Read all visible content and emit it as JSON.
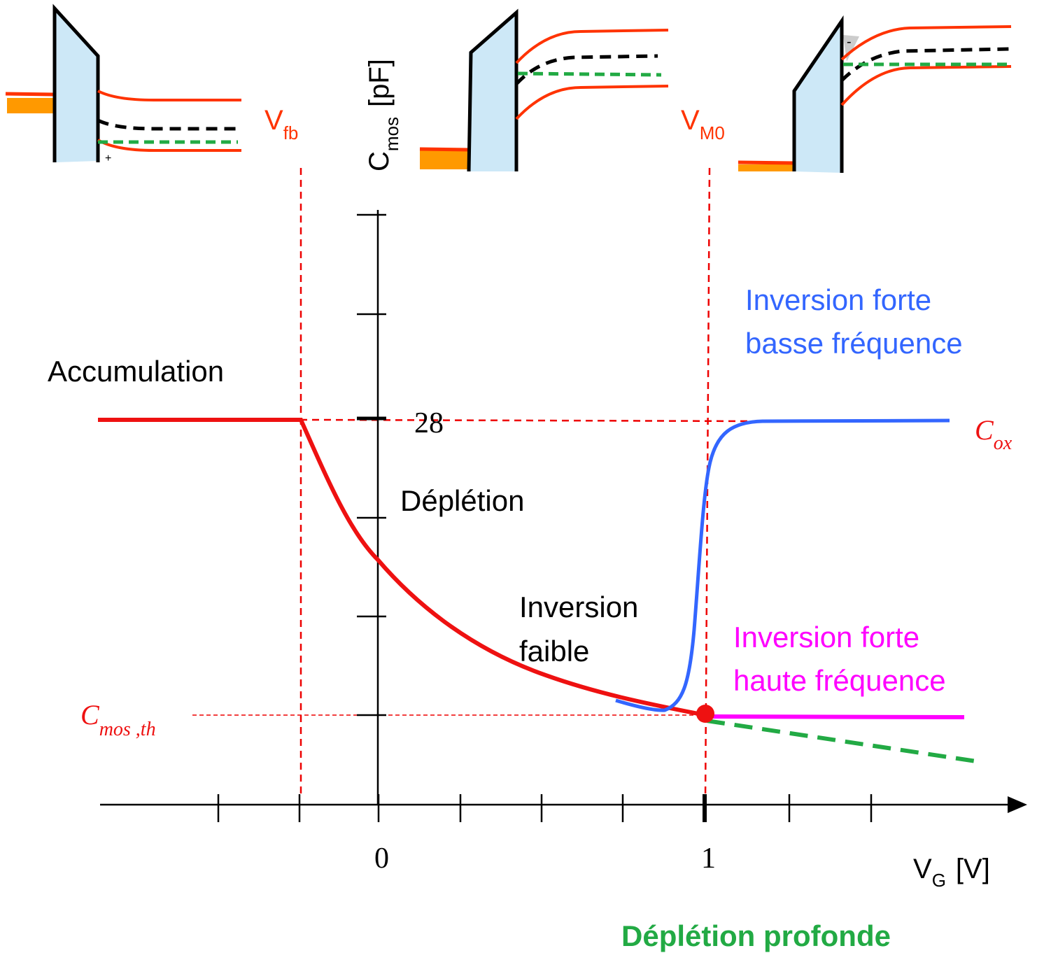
{
  "axes": {
    "y_label": {
      "main": "C",
      "sub": "mos",
      "unit": "[pF]"
    },
    "x_label": {
      "main": "V",
      "sub": "G",
      "unit": "[V]"
    },
    "x_tick_labels": [
      "0",
      "1"
    ],
    "y_tick_label": "28"
  },
  "markers": {
    "vfb": {
      "main": "V",
      "sub": "fb"
    },
    "vm0": {
      "main": "V",
      "sub": "M0"
    },
    "cox": {
      "main": "C",
      "sub": "ox"
    },
    "cmos_th": {
      "main": "C",
      "sub": "mos ,th"
    }
  },
  "regions": {
    "accumulation": "Accumulation",
    "depletion": "Déplétion",
    "weak_inversion": [
      "Inversion",
      "faible"
    ],
    "strong_inversion_lf": [
      "Inversion forte",
      "basse fréquence"
    ],
    "strong_inversion_hf": [
      "Inversion forte",
      "haute fréquence"
    ],
    "deep_depletion": "Déplétion profonde"
  },
  "band_diagrams": {
    "plus": "+",
    "minus": "-"
  }
}
